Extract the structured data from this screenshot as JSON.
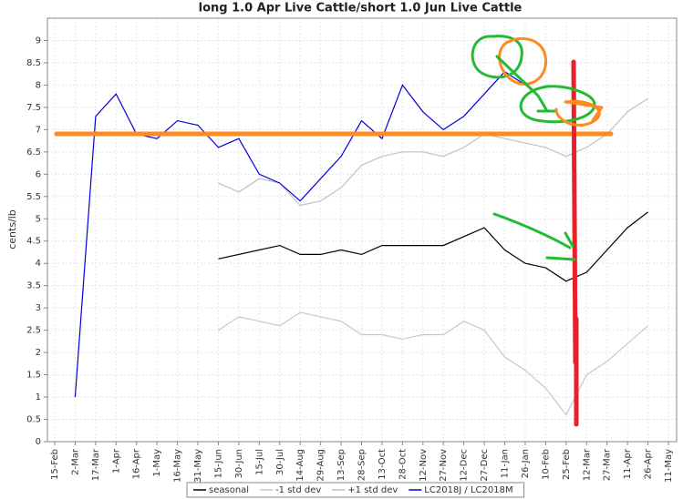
{
  "chart_data": {
    "type": "line",
    "title": "long 1.0 Apr Live Cattle/short 1.0 Jun Live Cattle",
    "y_label": "cents/lb",
    "categories": [
      "15-Feb",
      "2-Mar",
      "17-Mar",
      "1-Apr",
      "16-Apr",
      "1-May",
      "16-May",
      "31-May",
      "15-Jun",
      "30-Jun",
      "15-Jul",
      "30-Jul",
      "14-Aug",
      "29-Aug",
      "13-Sep",
      "28-Sep",
      "13-Oct",
      "28-Oct",
      "12-Nov",
      "27-Nov",
      "12-Dec",
      "27-Dec",
      "11-Jan",
      "26-Jan",
      "10-Feb",
      "25-Feb",
      "12-Mar",
      "27-Mar",
      "11-Apr",
      "26-Apr",
      "11-May"
    ],
    "series": [
      {
        "name": "seasonal",
        "color": "#000000",
        "values": [
          null,
          null,
          null,
          null,
          null,
          null,
          null,
          null,
          4.1,
          4.2,
          4.3,
          4.4,
          4.2,
          4.2,
          4.3,
          4.2,
          4.4,
          4.4,
          4.4,
          4.4,
          4.6,
          4.8,
          4.3,
          4.0,
          3.9,
          3.6,
          3.8,
          4.3,
          4.8,
          5.15,
          null
        ]
      },
      {
        "name": "-1 std dev",
        "color": "#c8c8c8",
        "values": [
          null,
          null,
          null,
          null,
          null,
          null,
          null,
          null,
          2.5,
          2.8,
          2.7,
          2.6,
          2.9,
          2.8,
          2.7,
          2.4,
          2.4,
          2.3,
          2.4,
          2.4,
          2.7,
          2.5,
          1.9,
          1.6,
          1.2,
          0.6,
          1.5,
          1.8,
          2.2,
          2.6,
          null
        ]
      },
      {
        "name": "+1 std dev",
        "color": "#c0c0c0",
        "values": [
          null,
          null,
          null,
          null,
          null,
          null,
          null,
          null,
          5.8,
          5.6,
          5.9,
          5.8,
          5.3,
          5.4,
          5.7,
          6.2,
          6.4,
          6.5,
          6.5,
          6.4,
          6.6,
          6.9,
          6.8,
          6.7,
          6.6,
          6.4,
          6.6,
          6.9,
          7.4,
          7.7,
          null
        ]
      },
      {
        "name": "LC2018J / LC2018M",
        "color": "#0000dd",
        "values": [
          null,
          1.0,
          7.3,
          7.8,
          6.9,
          6.8,
          7.2,
          7.1,
          6.6,
          6.8,
          6.0,
          5.8,
          5.4,
          5.9,
          6.4,
          7.2,
          6.8,
          8.0,
          7.4,
          7.0,
          7.3,
          7.8,
          8.3,
          8.0,
          null,
          null,
          null,
          null,
          null,
          null,
          null
        ]
      }
    ],
    "ylim": [
      0,
      9.5
    ],
    "yticks": [
      0,
      0.5,
      1,
      1.5,
      2,
      2.5,
      3,
      3.5,
      4,
      4.5,
      5,
      5.5,
      6,
      6.5,
      7,
      7.5,
      8,
      8.5,
      9
    ],
    "grid": true
  }
}
